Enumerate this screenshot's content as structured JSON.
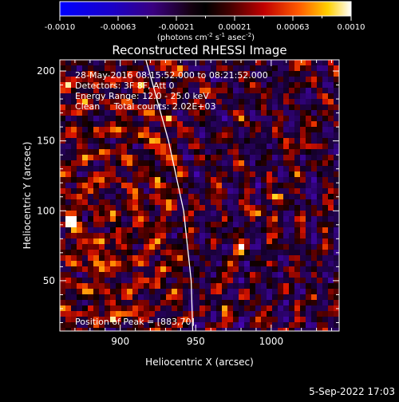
{
  "colorbar": {
    "ticks": [
      "-0.0010",
      "-0.00063",
      "-0.00021",
      "0.00021",
      "0.00063",
      "0.0010"
    ],
    "unit_label": "(photons cm",
    "unit_sup1": "-2",
    "unit_mid": " s",
    "unit_sup2": "-1",
    "unit_mid2": " asec",
    "unit_sup3": "-2",
    "unit_end": ")"
  },
  "info": {
    "line1": "28-May-2016 08:15:52.000 to 08:21:52.000",
    "line2": "Detectors: 3F 8F, Att 0",
    "line3": "Energy Range: 12.0 - 25.0 keV",
    "line4": "Clean     Total counts: 2.02E+03",
    "peak": "Position of Peak = [883,70]"
  },
  "footer": {
    "timestamp": "5-Sep-2022 17:03"
  },
  "chart_data": {
    "type": "heatmap",
    "title": "Reconstructed RHESSI Image",
    "xlabel": "Heliocentric X (arcsec)",
    "ylabel": "Heliocentric Y (arcsec)",
    "xlim": [
      860,
      1045
    ],
    "ylim": [
      14,
      208
    ],
    "xticks": [
      900,
      950,
      1000
    ],
    "yticks": [
      50,
      100,
      150,
      200
    ],
    "colorbar_range": [
      -0.001,
      0.001
    ],
    "limb_curve": [
      [
        917,
        208
      ],
      [
        932,
        150
      ],
      [
        942,
        100
      ],
      [
        947,
        50
      ],
      [
        948,
        14
      ]
    ],
    "bright_spots": [
      {
        "x": 883,
        "y": 70,
        "intensity": 1.0
      },
      {
        "x": 1020,
        "y": 148,
        "intensity": 0.95
      },
      {
        "x": 868,
        "y": 92,
        "intensity": 0.8
      },
      {
        "x": 980,
        "y": 75,
        "intensity": 0.8
      },
      {
        "x": 1020,
        "y": 208,
        "intensity": 0.85
      },
      {
        "x": 900,
        "y": 30,
        "intensity": 0.7
      },
      {
        "x": 970,
        "y": 28,
        "intensity": 0.7
      },
      {
        "x": 1005,
        "y": 110,
        "intensity": 0.7
      },
      {
        "x": 990,
        "y": 100,
        "intensity": 0.65
      },
      {
        "x": 955,
        "y": 185,
        "intensity": 0.6
      }
    ]
  },
  "colors": {
    "background": "#000000",
    "axis": "#ffffff",
    "limb": "#ffffff"
  }
}
